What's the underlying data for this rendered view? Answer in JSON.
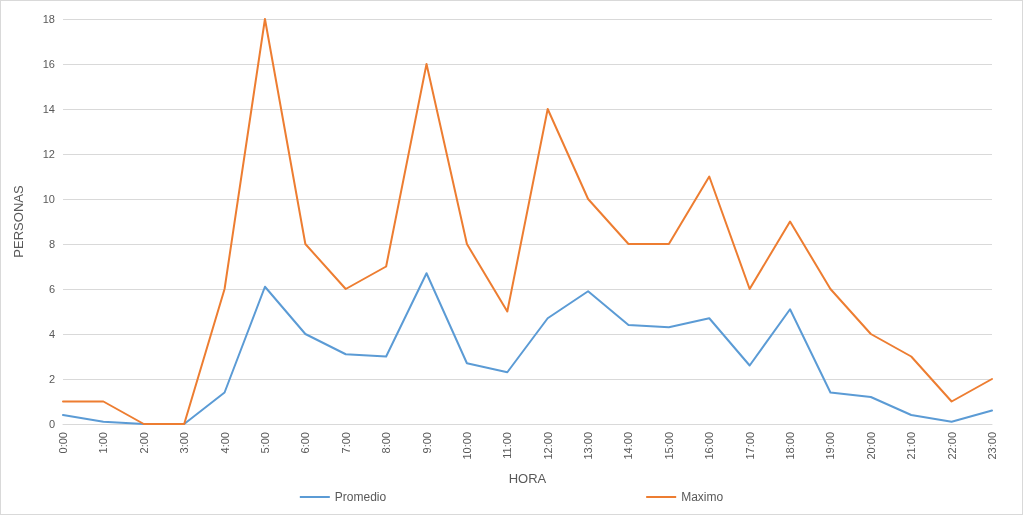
{
  "chart_data": {
    "type": "line",
    "xlabel": "HORA",
    "ylabel": "PERSONAS",
    "categories": [
      "0:00",
      "1:00",
      "2:00",
      "3:00",
      "4:00",
      "5:00",
      "6:00",
      "7:00",
      "8:00",
      "9:00",
      "10:00",
      "11:00",
      "12:00",
      "13:00",
      "14:00",
      "15:00",
      "16:00",
      "17:00",
      "18:00",
      "19:00",
      "20:00",
      "21:00",
      "22:00",
      "23:00"
    ],
    "series": [
      {
        "name": "Promedio",
        "color": "#5b9bd5",
        "values": [
          0.4,
          0.1,
          0,
          0,
          1.4,
          6.1,
          4,
          3.1,
          3,
          6.7,
          2.7,
          2.3,
          4.7,
          5.9,
          4.4,
          4.3,
          4.7,
          2.6,
          5.1,
          1.4,
          1.2,
          0.4,
          0.1,
          0.6
        ]
      },
      {
        "name": "Maximo",
        "color": "#ed7d31",
        "values": [
          1,
          1,
          0,
          0,
          6,
          18,
          8,
          6,
          7,
          16,
          8,
          5,
          14,
          10,
          8,
          8,
          11,
          6,
          9,
          6,
          4,
          3,
          1,
          2
        ]
      }
    ],
    "ylim": [
      0,
      18
    ],
    "yticks": [
      0,
      2,
      4,
      6,
      8,
      10,
      12,
      14,
      16,
      18
    ],
    "grid": "y",
    "legend": "bottom",
    "marker": "none",
    "line_style": "solid"
  }
}
